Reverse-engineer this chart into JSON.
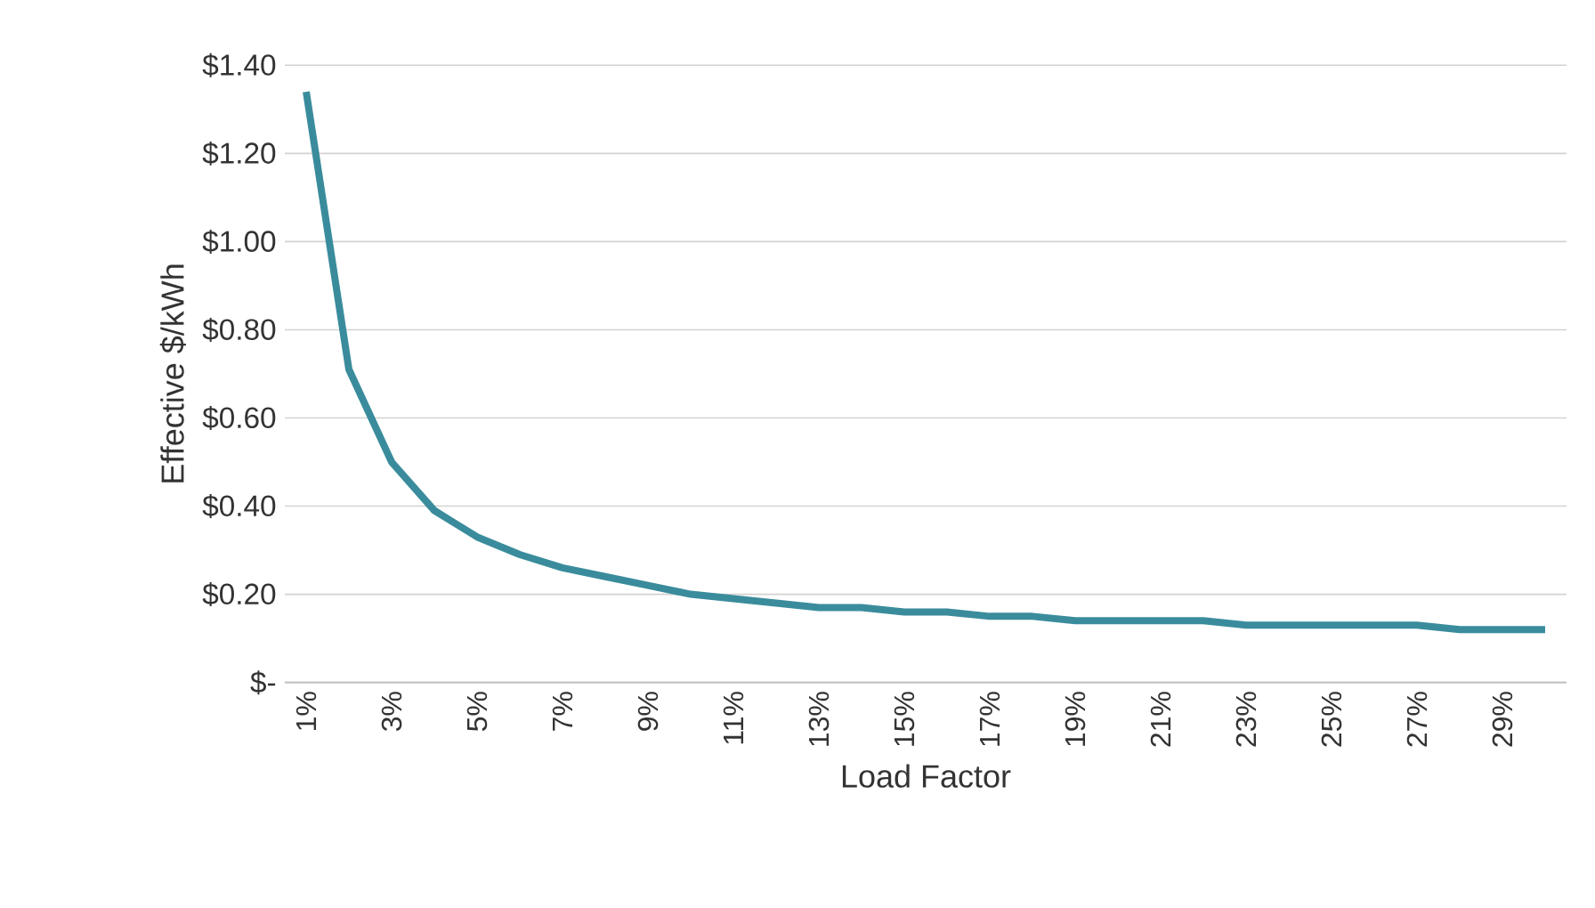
{
  "chart_data": {
    "type": "line",
    "xlabel": "Load Factor",
    "ylabel": "Effective $/kWh",
    "categories": [
      "1%",
      null,
      "3%",
      null,
      "5%",
      null,
      "7%",
      null,
      "9%",
      null,
      "11%",
      null,
      "13%",
      null,
      "15%",
      null,
      "17%",
      null,
      "19%",
      null,
      "21%",
      null,
      "23%",
      null,
      "25%",
      null,
      "27%",
      null,
      "29%",
      null
    ],
    "series": [
      {
        "color": "#3a8c9c",
        "values": [
          1.34,
          0.71,
          0.5,
          0.39,
          0.33,
          0.29,
          0.26,
          0.24,
          0.22,
          0.2,
          0.19,
          0.18,
          0.17,
          0.17,
          0.16,
          0.16,
          0.15,
          0.15,
          0.14,
          0.14,
          0.14,
          0.14,
          0.13,
          0.13,
          0.13,
          0.13,
          0.13,
          0.12,
          0.12,
          0.12
        ]
      }
    ],
    "ylim": [
      0,
      1.4
    ],
    "yticks": [
      {
        "value": 0,
        "label": "$-"
      },
      {
        "value": 0.2,
        "label": "$0.20"
      },
      {
        "value": 0.4,
        "label": "$0.40"
      },
      {
        "value": 0.6,
        "label": "$0.60"
      },
      {
        "value": 0.8,
        "label": "$0.80"
      },
      {
        "value": 1.0,
        "label": "$1.00"
      },
      {
        "value": 1.2,
        "label": "$1.20"
      },
      {
        "value": 1.4,
        "label": "$1.40"
      }
    ],
    "grid": "y",
    "marker": "none",
    "line_style": "solid"
  }
}
